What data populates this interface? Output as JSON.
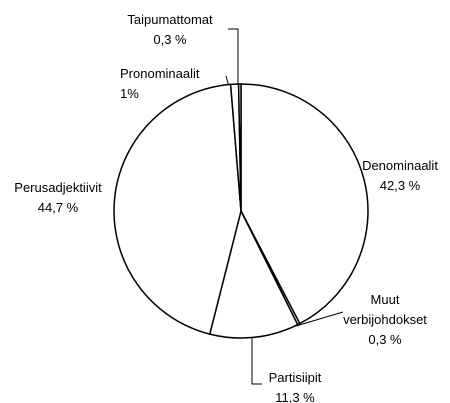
{
  "chart_data": {
    "type": "pie",
    "categories": [
      "Denominaalit",
      "Muut verbijohdokset",
      "Partisiipit",
      "Perusadjektiivit",
      "Pronominaalit",
      "Taipumattomat"
    ],
    "values": [
      42.3,
      0.3,
      11.3,
      44.7,
      1,
      0.3
    ],
    "value_labels": [
      "42,3 %",
      "0,3 %",
      "11,3 %",
      "44,7 %",
      "1%",
      "0,3 %"
    ],
    "color": "#ffffff"
  }
}
